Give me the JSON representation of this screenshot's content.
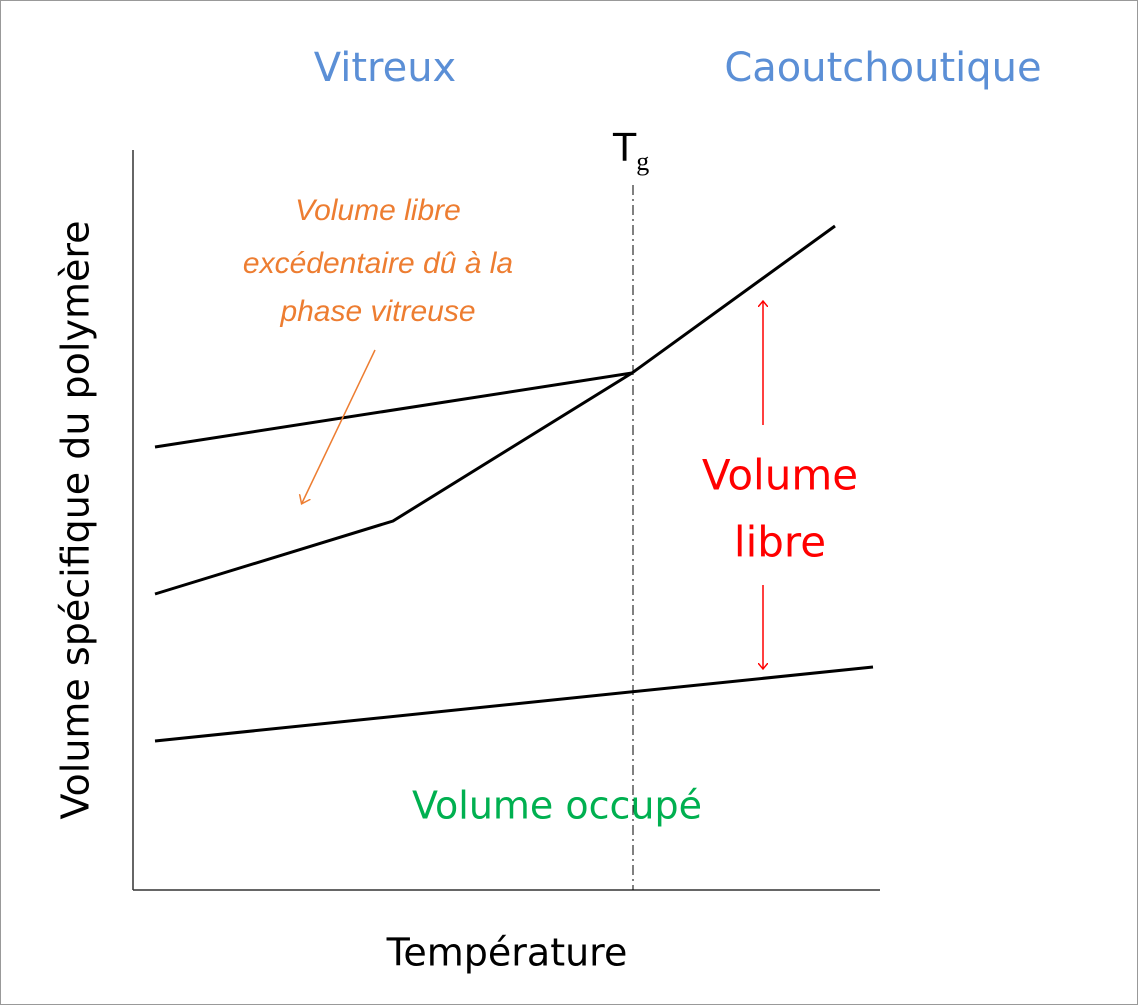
{
  "regions": {
    "left": "Vitreux",
    "right": "Caoutchoutique"
  },
  "tg": {
    "main": "T",
    "sub": "g"
  },
  "annotation": {
    "lines": [
      "Volume libre",
      "excédentaire dû à la",
      "phase vitreuse"
    ]
  },
  "free_volume": {
    "lines": [
      "Volume",
      "libre"
    ]
  },
  "occupied_volume": "Volume occupé",
  "axes": {
    "y_label": "Volume spécifique du polymère",
    "x_label": "Température"
  }
}
